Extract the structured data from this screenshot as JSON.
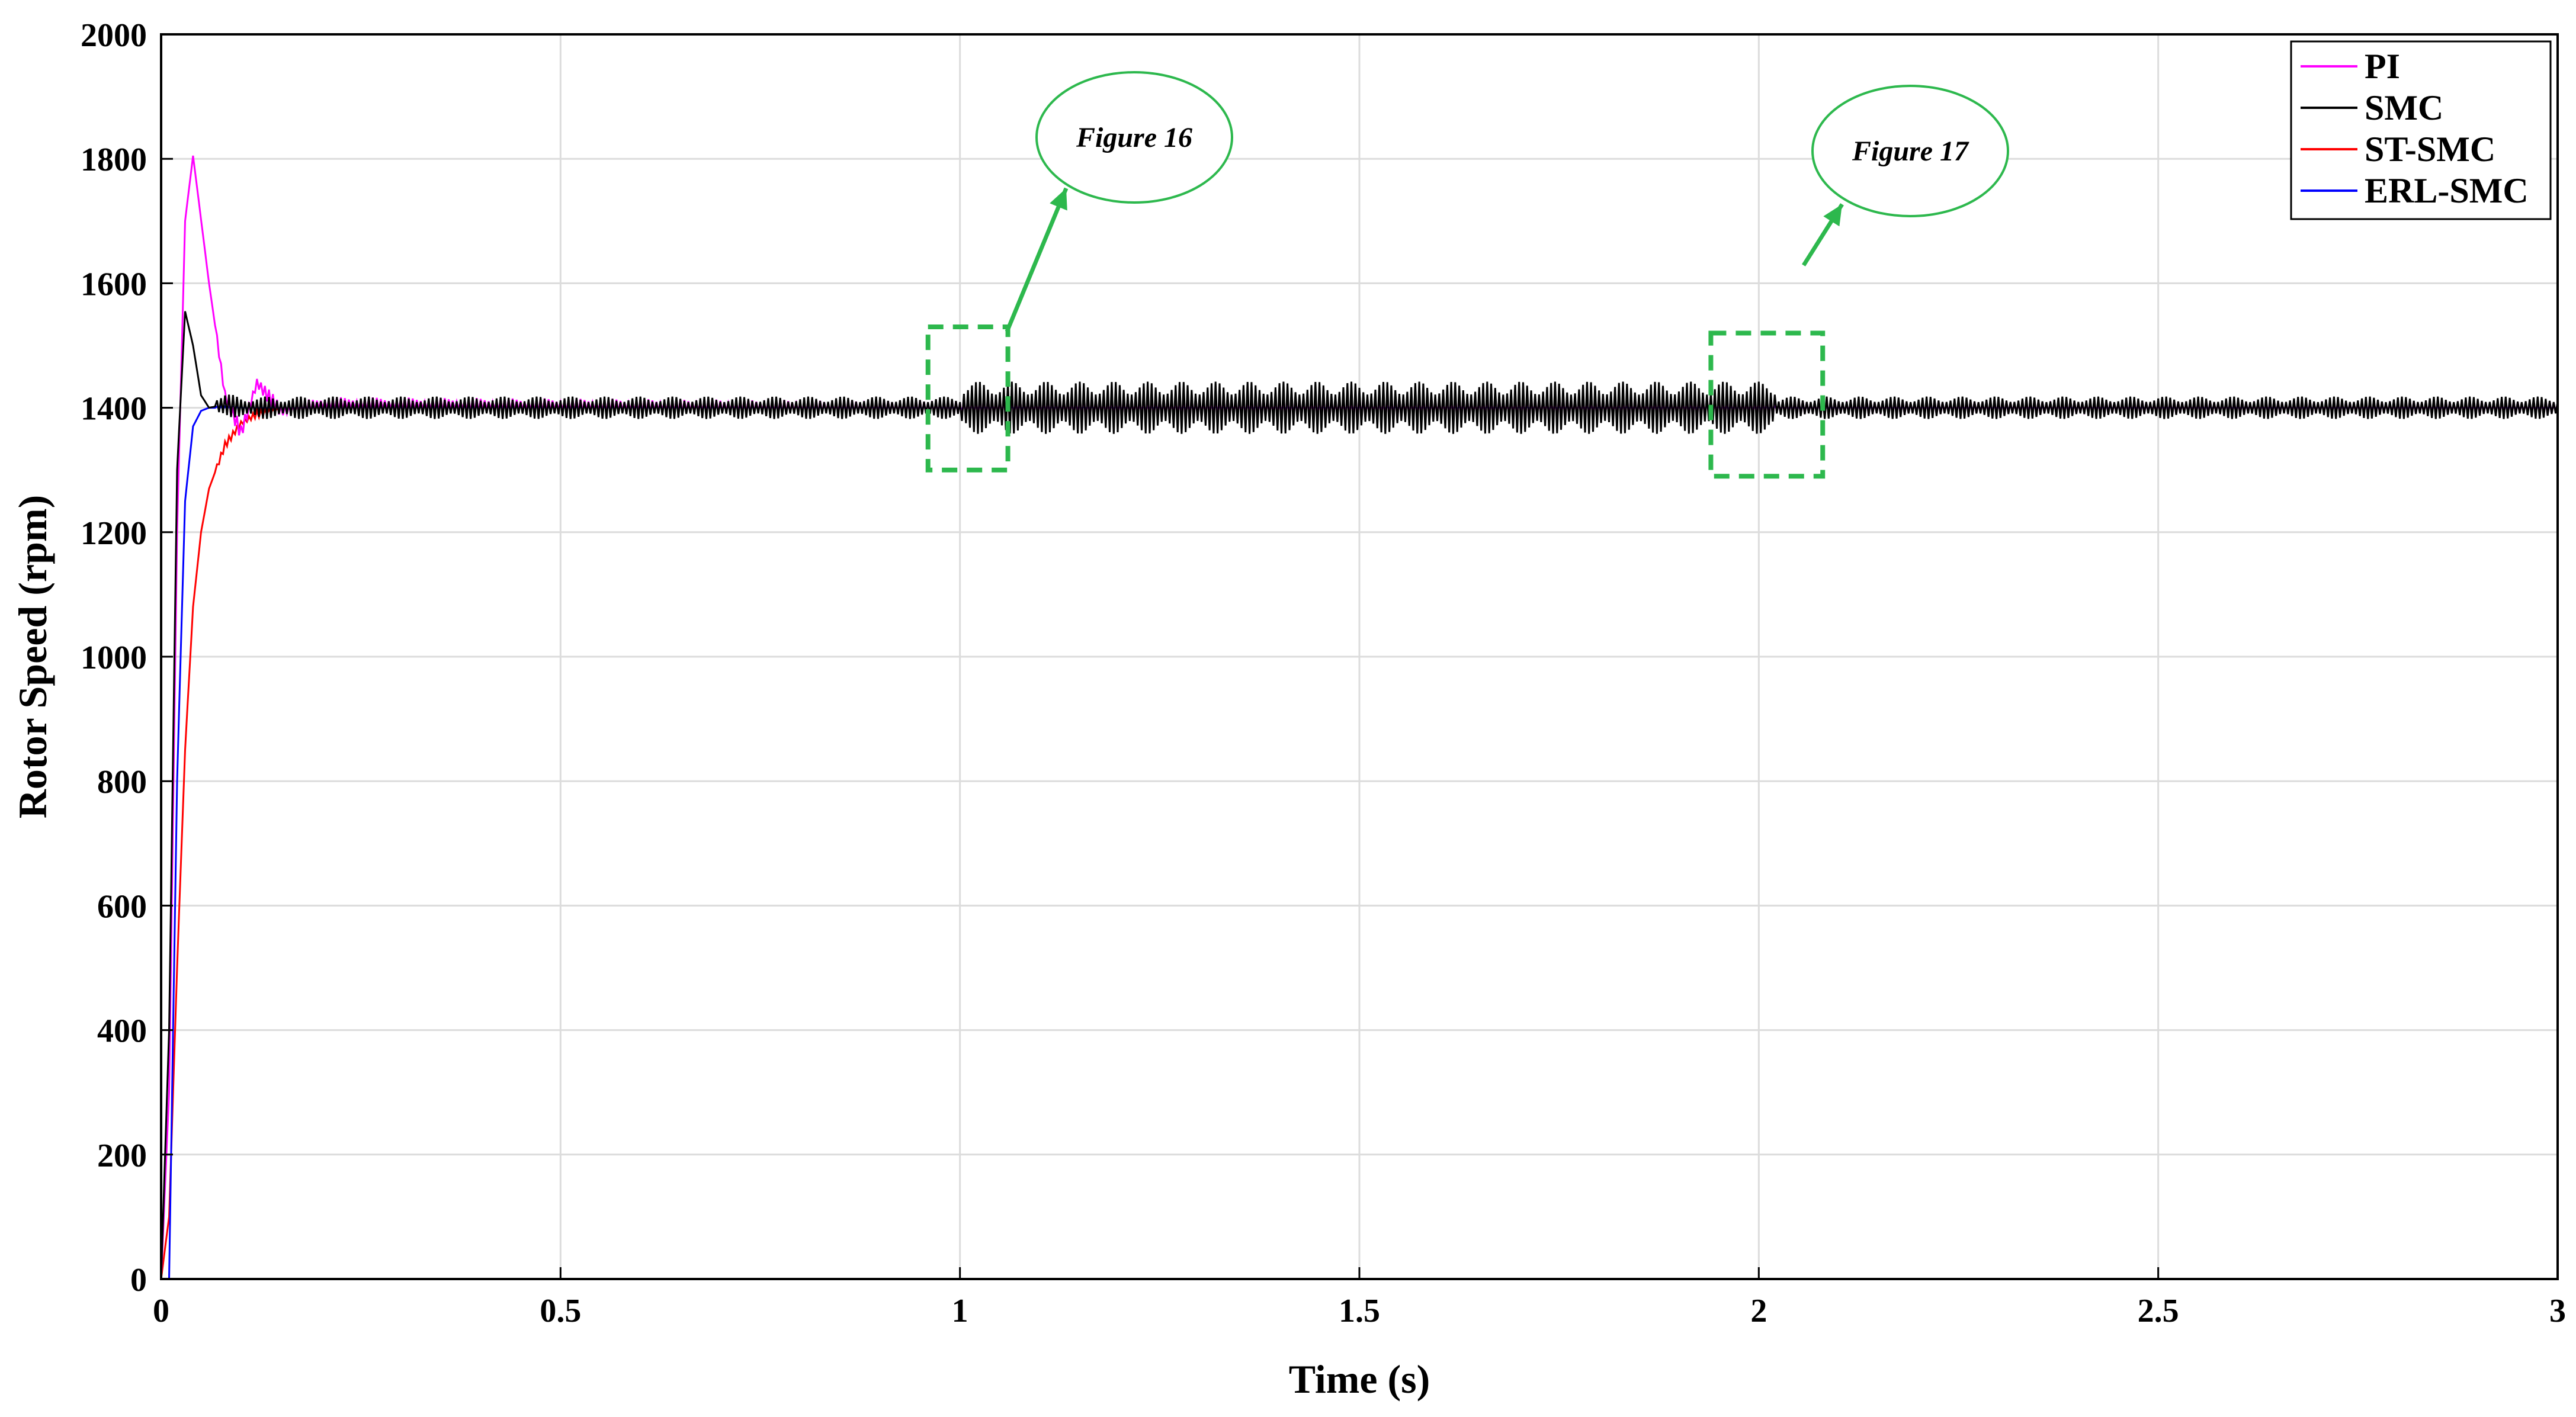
{
  "chart_data": {
    "type": "line",
    "xlabel": "Time (s)",
    "ylabel": "Rotor Speed (rpm)",
    "xlim": [
      0,
      3
    ],
    "ylim": [
      0,
      2000
    ],
    "xticks": [
      "0",
      "0.5",
      "1",
      "1.5",
      "2",
      "2.5",
      "3"
    ],
    "xtick_values": [
      0,
      0.5,
      1,
      1.5,
      2,
      2.5,
      3
    ],
    "yticks": [
      "0",
      "200",
      "400",
      "600",
      "800",
      "1000",
      "1200",
      "1400",
      "1600",
      "1800",
      "2000"
    ],
    "ytick_values": [
      0,
      200,
      400,
      600,
      800,
      1000,
      1200,
      1400,
      1600,
      1800,
      2000
    ],
    "grid": true,
    "legend_position": "top-right",
    "series": [
      {
        "name": "PI",
        "color": "#ff00ff",
        "x": [
          0,
          0.01,
          0.02,
          0.03,
          0.04,
          0.06,
          0.08,
          0.1,
          0.12,
          0.15,
          0.2,
          1.0,
          2.0,
          3.0
        ],
        "y": [
          0,
          300,
          1200,
          1700,
          1805,
          1600,
          1420,
          1360,
          1440,
          1395,
          1405,
          1400,
          1400,
          1400
        ],
        "ripple": {
          "early": 12,
          "mid": 22,
          "late": 12
        }
      },
      {
        "name": "SMC",
        "color": "#000000",
        "x": [
          0,
          0.01,
          0.02,
          0.03,
          0.04,
          0.05,
          0.06,
          0.08,
          0.1,
          0.2,
          1.0,
          2.0,
          3.0
        ],
        "y": [
          0,
          400,
          1300,
          1555,
          1500,
          1420,
          1400,
          1405,
          1400,
          1400,
          1400,
          1400,
          1400
        ],
        "ripple": {
          "early": 18,
          "mid": 42,
          "late": 18
        }
      },
      {
        "name": "ST-SMC",
        "color": "#ff0000",
        "x": [
          0,
          0.01,
          0.02,
          0.03,
          0.04,
          0.05,
          0.06,
          0.08,
          0.1,
          0.12,
          0.15,
          0.2,
          1.0,
          2.0,
          3.0
        ],
        "y": [
          0,
          100,
          500,
          850,
          1080,
          1200,
          1270,
          1340,
          1375,
          1390,
          1398,
          1400,
          1400,
          1400,
          1400
        ],
        "ripple": {
          "early": 6,
          "mid": 10,
          "late": 6
        }
      },
      {
        "name": "ERL-SMC",
        "color": "#0000ff",
        "x": [
          0,
          0.01,
          0.015,
          0.02,
          0.03,
          0.04,
          0.05,
          0.06,
          0.1,
          1.0,
          2.0,
          3.0
        ],
        "y": [
          0,
          0,
          400,
          800,
          1250,
          1370,
          1395,
          1400,
          1400,
          1400,
          1400,
          1400
        ],
        "ripple": {
          "early": 2,
          "mid": 4,
          "late": 2
        }
      }
    ],
    "annotations": [
      {
        "label": "Figure 16",
        "box_x": [
          0.96,
          1.06
        ],
        "box_y": [
          1300,
          1530
        ],
        "color": "#2db84d"
      },
      {
        "label": "Figure 17",
        "box_x": [
          1.94,
          2.08
        ],
        "box_y": [
          1290,
          1520
        ],
        "color": "#2db84d"
      }
    ]
  }
}
